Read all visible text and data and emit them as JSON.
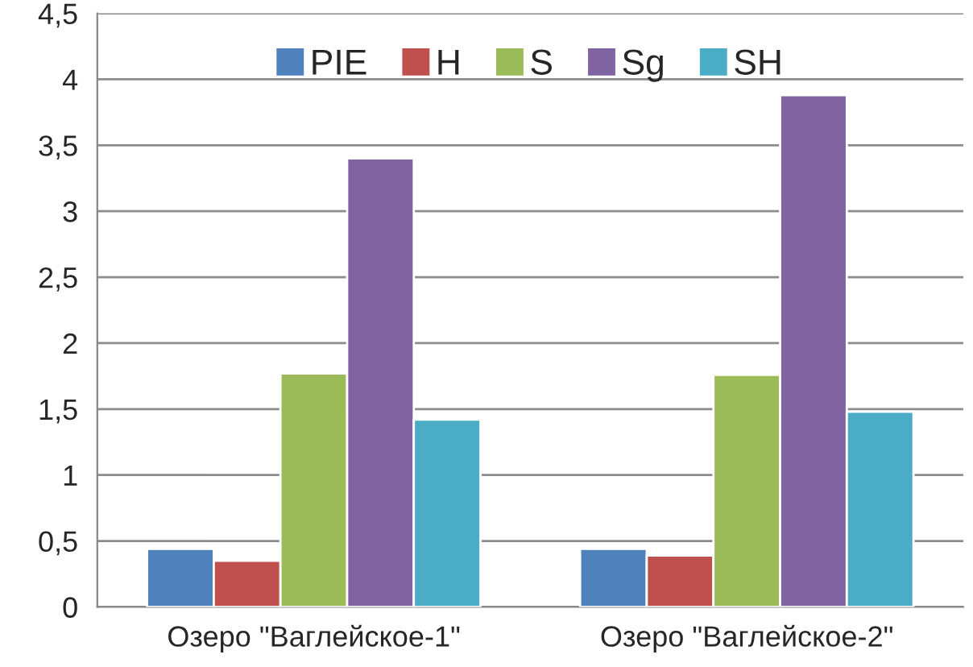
{
  "chart_data": {
    "type": "bar",
    "categories": [
      "Озеро \"Ваглейское-1\"",
      "Озеро \"Ваглейское-2\""
    ],
    "series": [
      {
        "name": "PIE",
        "color": "#4f81bd",
        "values": [
          0.44,
          0.44
        ]
      },
      {
        "name": "H",
        "color": "#c0504d",
        "values": [
          0.35,
          0.39
        ]
      },
      {
        "name": "S",
        "color": "#9bbb59",
        "values": [
          1.77,
          1.76
        ]
      },
      {
        "name": "Sg",
        "color": "#8064a2",
        "values": [
          3.4,
          3.88
        ]
      },
      {
        "name": "SH",
        "color": "#4bacc6",
        "values": [
          1.42,
          1.48
        ]
      }
    ],
    "ylim": [
      0,
      4.5
    ],
    "yticks": [
      0,
      {
        "value": 0.5,
        "label": "0,5"
      },
      1,
      {
        "value": 1.5,
        "label": "1,5"
      },
      2,
      {
        "value": 2.5,
        "label": "2,5"
      },
      3,
      {
        "value": 3.5,
        "label": "3,5"
      },
      4,
      {
        "value": 4.5,
        "label": "4,5"
      }
    ],
    "grid": "y",
    "legend": "top"
  }
}
